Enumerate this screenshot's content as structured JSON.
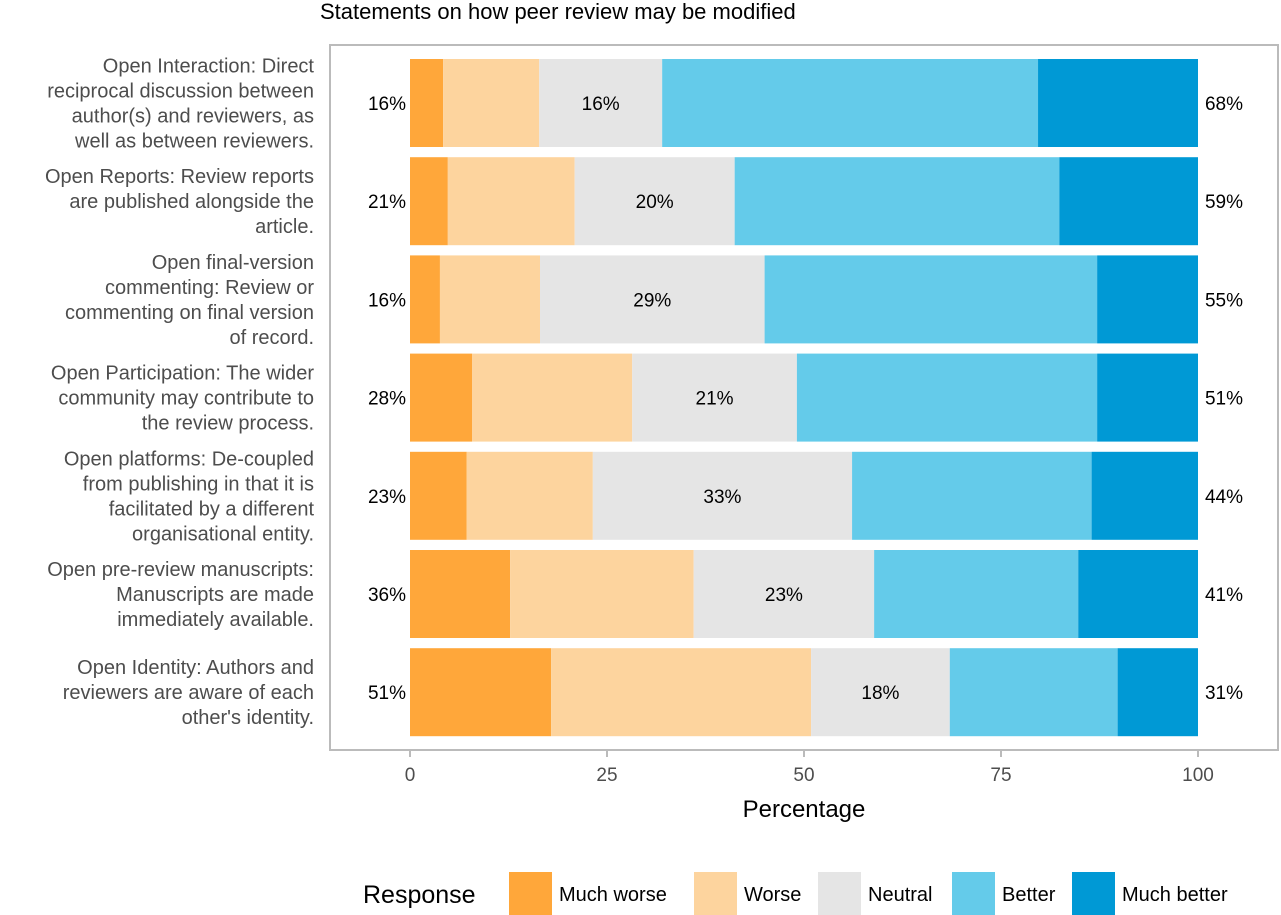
{
  "chart_data": {
    "type": "bar",
    "orientation": "horizontal",
    "stacked": true,
    "title": "Statements on how peer review may be modified",
    "xlabel": "Percentage",
    "ylabel": "",
    "xlim": [
      0,
      100
    ],
    "xticks": [
      "0",
      "25",
      "50",
      "75",
      "100"
    ],
    "grid": false,
    "legend": {
      "title": "Response",
      "position": "bottom"
    },
    "categories": [
      {
        "lines": [
          "Open Interaction: Direct",
          "reciprocal discussion between",
          "author(s) and reviewers, as",
          "well as between reviewers."
        ],
        "left_label": "16%",
        "neutral_label": "16%",
        "right_label": "68%"
      },
      {
        "lines": [
          "Open Reports: Review reports",
          "are published alongside the",
          "article."
        ],
        "left_label": "21%",
        "neutral_label": "20%",
        "right_label": "59%"
      },
      {
        "lines": [
          "Open final-version",
          "commenting: Review or",
          "commenting on final version",
          "of record."
        ],
        "left_label": "16%",
        "neutral_label": "29%",
        "right_label": "55%"
      },
      {
        "lines": [
          "Open Participation: The wider",
          "community may contribute to",
          "the review process."
        ],
        "left_label": "28%",
        "neutral_label": "21%",
        "right_label": "51%"
      },
      {
        "lines": [
          "Open platforms: De-coupled",
          "from publishing in that it is",
          "facilitated by a different",
          "organisational entity."
        ],
        "left_label": "23%",
        "neutral_label": "33%",
        "right_label": "44%"
      },
      {
        "lines": [
          "Open pre-review manuscripts:",
          "Manuscripts are made",
          "immediately available."
        ],
        "left_label": "36%",
        "neutral_label": "23%",
        "right_label": "41%"
      },
      {
        "lines": [
          "Open Identity: Authors and",
          "reviewers are aware of each",
          "other's identity."
        ],
        "left_label": "51%",
        "neutral_label": "18%",
        "right_label": "31%"
      }
    ],
    "series": [
      {
        "name": "Much worse",
        "color": "#FFA73A",
        "values": [
          4.2,
          4.8,
          3.8,
          7.9,
          7.2,
          12.7,
          17.9
        ]
      },
      {
        "name": "Worse",
        "color": "#FDD49E",
        "values": [
          12.2,
          16.1,
          12.7,
          20.3,
          16.0,
          23.3,
          33.0
        ]
      },
      {
        "name": "Neutral",
        "color": "#E5E5E5",
        "values": [
          15.6,
          20.3,
          28.5,
          20.9,
          32.9,
          22.9,
          17.6
        ]
      },
      {
        "name": "Better",
        "color": "#64CBEA",
        "values": [
          47.7,
          41.2,
          42.2,
          38.1,
          30.4,
          25.9,
          21.3
        ]
      },
      {
        "name": "Much better",
        "color": "#0099D5",
        "values": [
          20.3,
          17.6,
          12.8,
          12.8,
          13.5,
          15.2,
          10.2
        ]
      }
    ]
  }
}
